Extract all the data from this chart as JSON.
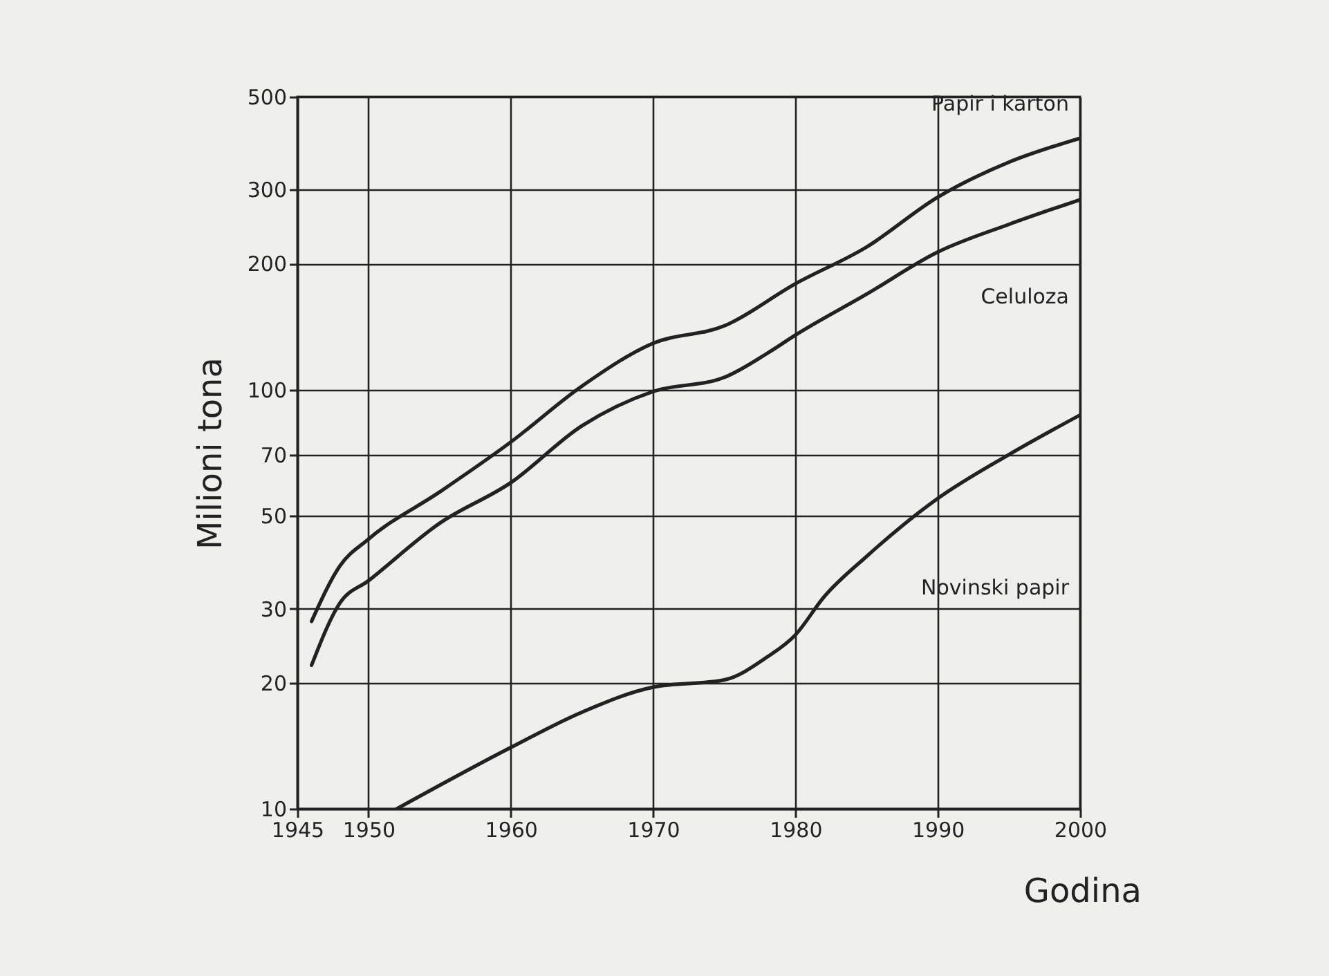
{
  "chart_data": {
    "type": "line",
    "xlabel": "Godina",
    "ylabel": "Milioni tona",
    "xlim": [
      1945,
      2000
    ],
    "xticks": [
      1945,
      1950,
      1960,
      1970,
      1980,
      1990,
      2000
    ],
    "ylim": [
      10,
      500
    ],
    "yticks": [
      10,
      20,
      30,
      50,
      70,
      100,
      200,
      300,
      500
    ],
    "log": "y",
    "grid": true,
    "line_style": "solid",
    "series": [
      {
        "name": "Papir i karton",
        "color": "#222222",
        "x": [
          1946,
          1948,
          1950,
          1955,
          1960,
          1965,
          1970,
          1975,
          1980,
          1985,
          1990,
          1995,
          2000
        ],
        "values": [
          28,
          38,
          44,
          57,
          75,
          102,
          129,
          142,
          179,
          219,
          288,
          349,
          398
        ]
      },
      {
        "name": "Celuloza",
        "color": "#222222",
        "x": [
          1946,
          1948,
          1950,
          1955,
          1960,
          1965,
          1970,
          1975,
          1978,
          1980,
          1985,
          1990,
          1995,
          2000
        ],
        "values": [
          22,
          31,
          35,
          48,
          60,
          82,
          99,
          107,
          122,
          135,
          169,
          213,
          248,
          284
        ]
      },
      {
        "name": "Novinski papir",
        "color": "#222222",
        "x": [
          1952,
          1960,
          1965,
          1970,
          1975,
          1978,
          1980,
          1982,
          1985,
          1990,
          1995,
          2000
        ],
        "values": [
          10,
          14,
          17,
          19.5,
          20.3,
          23,
          26,
          32,
          40,
          55,
          70,
          87
        ]
      }
    ]
  }
}
